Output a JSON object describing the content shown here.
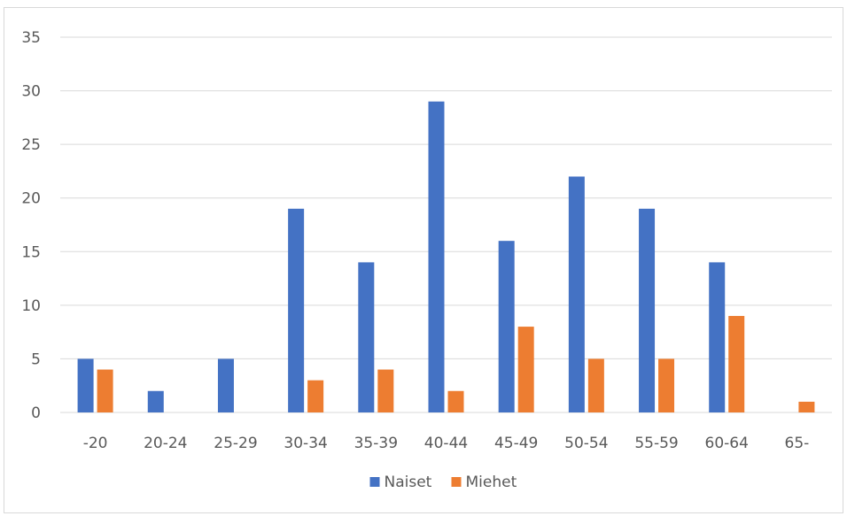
{
  "chart_data": {
    "type": "bar",
    "title": "",
    "xlabel": "",
    "ylabel": "",
    "categories": [
      "-20",
      "20-24",
      "25-29",
      "30-34",
      "35-39",
      "40-44",
      "45-49",
      "50-54",
      "55-59",
      "60-64",
      "65-"
    ],
    "series": [
      {
        "name": "Naiset",
        "color": "#4472c4",
        "values": [
          5,
          2,
          5,
          19,
          14,
          29,
          16,
          22,
          19,
          14,
          0
        ]
      },
      {
        "name": "Miehet",
        "color": "#ed7d31",
        "values": [
          4,
          0,
          0,
          3,
          4,
          2,
          8,
          5,
          5,
          9,
          1
        ]
      }
    ],
    "ylim": [
      0,
      35
    ],
    "yticks": [
      0,
      5,
      10,
      15,
      20,
      25,
      30,
      35
    ],
    "grid": true,
    "legend_position": "bottom"
  }
}
